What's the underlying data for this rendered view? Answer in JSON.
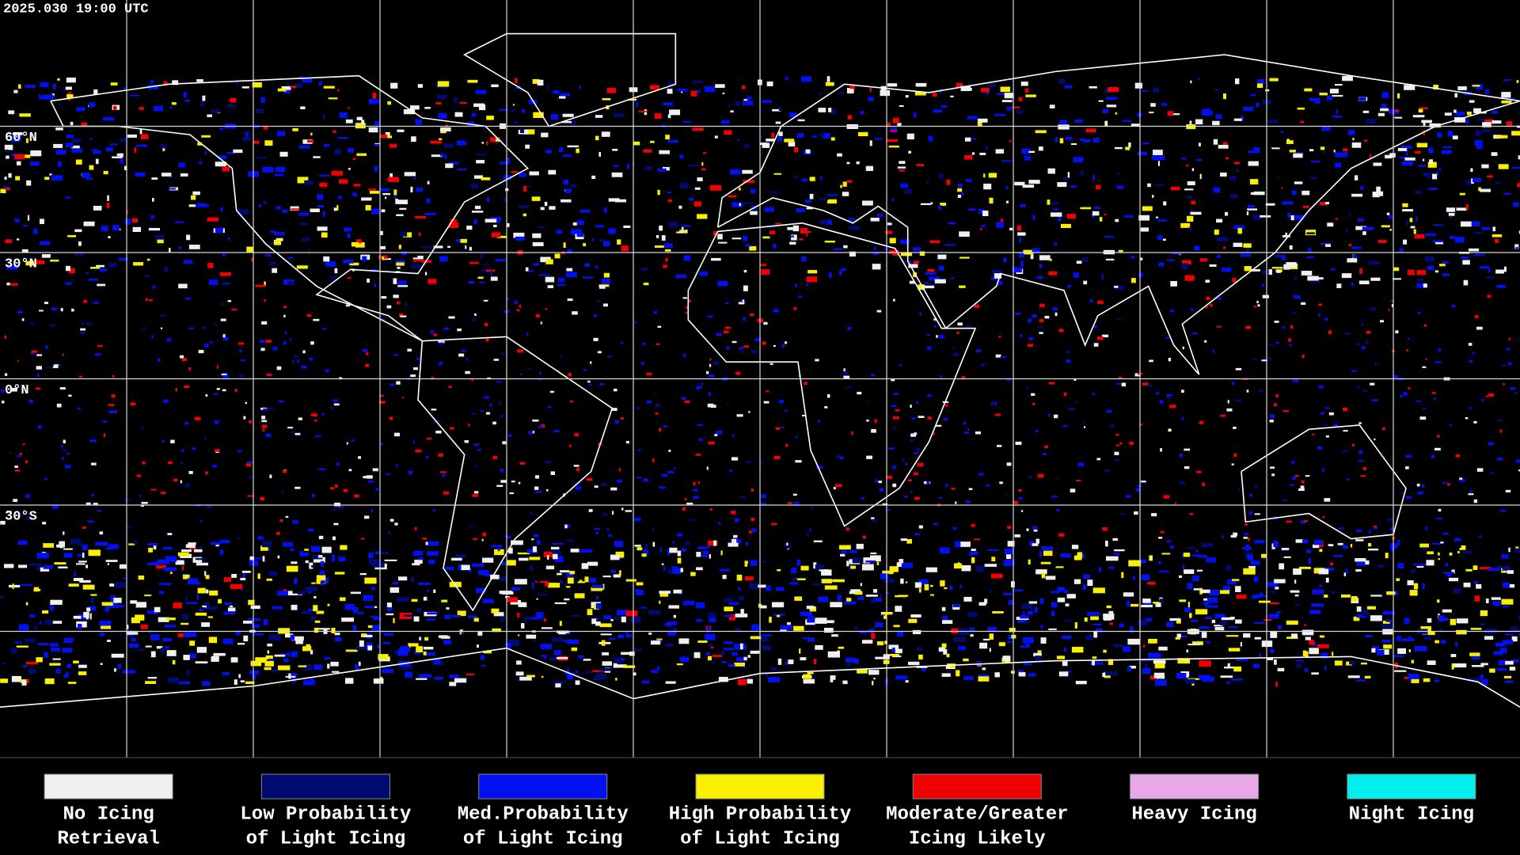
{
  "header": {
    "timestamp": "2025.030 19:00 UTC"
  },
  "map": {
    "latitude_labels": [
      "60°N",
      "30°N",
      "0°N",
      "30°S"
    ]
  },
  "legend": {
    "items": [
      {
        "label": [
          "No Icing",
          "Retrieval"
        ],
        "color": "#f0f0f0"
      },
      {
        "label": [
          "Low Probability",
          "of Light Icing"
        ],
        "color": "#000a70"
      },
      {
        "label": [
          "Med.Probability",
          "of Light Icing"
        ],
        "color": "#0010f0"
      },
      {
        "label": [
          "High Probability",
          "of Light Icing"
        ],
        "color": "#f8f000"
      },
      {
        "label": [
          "Moderate/Greater",
          "Icing Likely"
        ],
        "color": "#f00000"
      },
      {
        "label": [
          "Heavy Icing"
        ],
        "color": "#e8a8e8"
      },
      {
        "label": [
          "Night Icing"
        ],
        "color": "#00f0f0"
      }
    ]
  }
}
